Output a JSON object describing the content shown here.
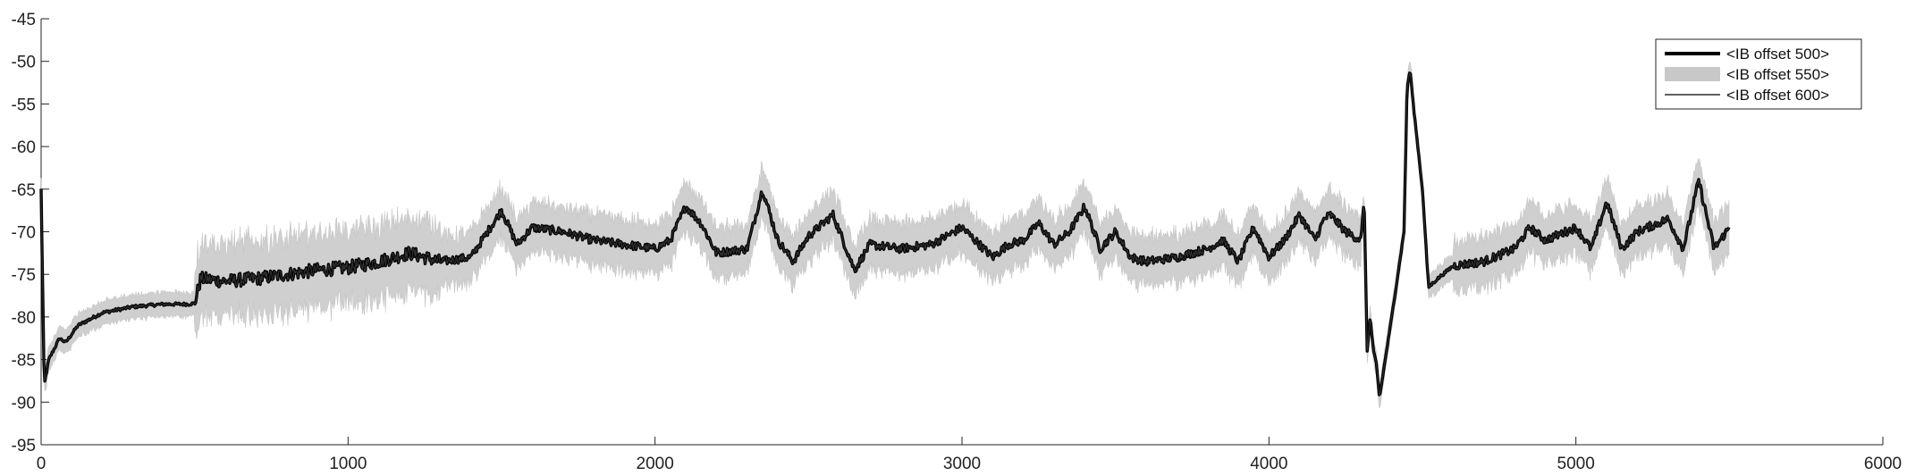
{
  "chart_data": {
    "type": "line",
    "title": "",
    "xlabel": "",
    "ylabel": "",
    "xlim": [
      0,
      6000
    ],
    "ylim": [
      -95,
      -45
    ],
    "x_ticks": [
      0,
      1000,
      2000,
      3000,
      4000,
      5000,
      6000
    ],
    "y_ticks": [
      -45,
      -50,
      -55,
      -60,
      -65,
      -70,
      -75,
      -80,
      -85,
      -90,
      -95
    ],
    "grid": false,
    "legend_position": "top-right",
    "series": [
      {
        "name": "<IB offset 500>",
        "style": "thick-black-line",
        "color": "#000000",
        "x": [
          0,
          10,
          25,
          60,
          80,
          120,
          200,
          300,
          400,
          480,
          500,
          520,
          600,
          700,
          800,
          900,
          1000,
          1100,
          1200,
          1300,
          1400,
          1500,
          1550,
          1600,
          1700,
          1800,
          1900,
          2000,
          2050,
          2100,
          2150,
          2200,
          2300,
          2350,
          2400,
          2450,
          2500,
          2580,
          2650,
          2700,
          2800,
          2900,
          2950,
          3000,
          3100,
          3150,
          3200,
          3250,
          3300,
          3350,
          3400,
          3450,
          3500,
          3550,
          3600,
          3700,
          3800,
          3850,
          3900,
          3950,
          4000,
          4050,
          4100,
          4150,
          4180,
          4200,
          4250,
          4300,
          4310,
          4320,
          4330,
          4340,
          4350,
          4360,
          4400,
          4440,
          4450,
          4460,
          4470,
          4500,
          4520,
          4550,
          4600,
          4700,
          4800,
          4850,
          4900,
          5000,
          5050,
          5100,
          5150,
          5200,
          5300,
          5350,
          5400,
          5450,
          5500
        ],
        "y": [
          -65,
          -88,
          -85,
          -82.5,
          -83,
          -81,
          -79.5,
          -78.8,
          -78.5,
          -78.5,
          -78.4,
          -75.5,
          -75.8,
          -75.5,
          -75,
          -74.5,
          -74.2,
          -73.5,
          -72.5,
          -73.5,
          -73,
          -67.5,
          -71.5,
          -69.5,
          -70,
          -71,
          -71.5,
          -72,
          -71,
          -67,
          -69,
          -72.5,
          -72,
          -65,
          -71,
          -73.5,
          -70.5,
          -68,
          -74.5,
          -71.5,
          -72,
          -71.5,
          -70.5,
          -69.5,
          -73,
          -71.5,
          -71,
          -69,
          -71.5,
          -70,
          -67,
          -72,
          -70,
          -73,
          -73.5,
          -73,
          -72,
          -71,
          -73.5,
          -69.5,
          -73,
          -71,
          -68,
          -71,
          -68.5,
          -68,
          -70,
          -71,
          -66,
          -84,
          -80,
          -84,
          -85.5,
          -89.5,
          -80,
          -70,
          -53,
          -51,
          -55,
          -65,
          -76.5,
          -75.5,
          -74,
          -73.5,
          -72,
          -69.5,
          -71,
          -69.5,
          -72,
          -66.5,
          -72,
          -70,
          -68.5,
          -72,
          -64,
          -72,
          -69.5
        ]
      },
      {
        "name": "<IB offset 550>",
        "style": "grey-band",
        "color": "#c8c8c8",
        "x": [],
        "y": []
      },
      {
        "name": "<IB offset 600>",
        "style": "thin-black-line",
        "color": "#000000",
        "x": [],
        "y": []
      }
    ]
  }
}
